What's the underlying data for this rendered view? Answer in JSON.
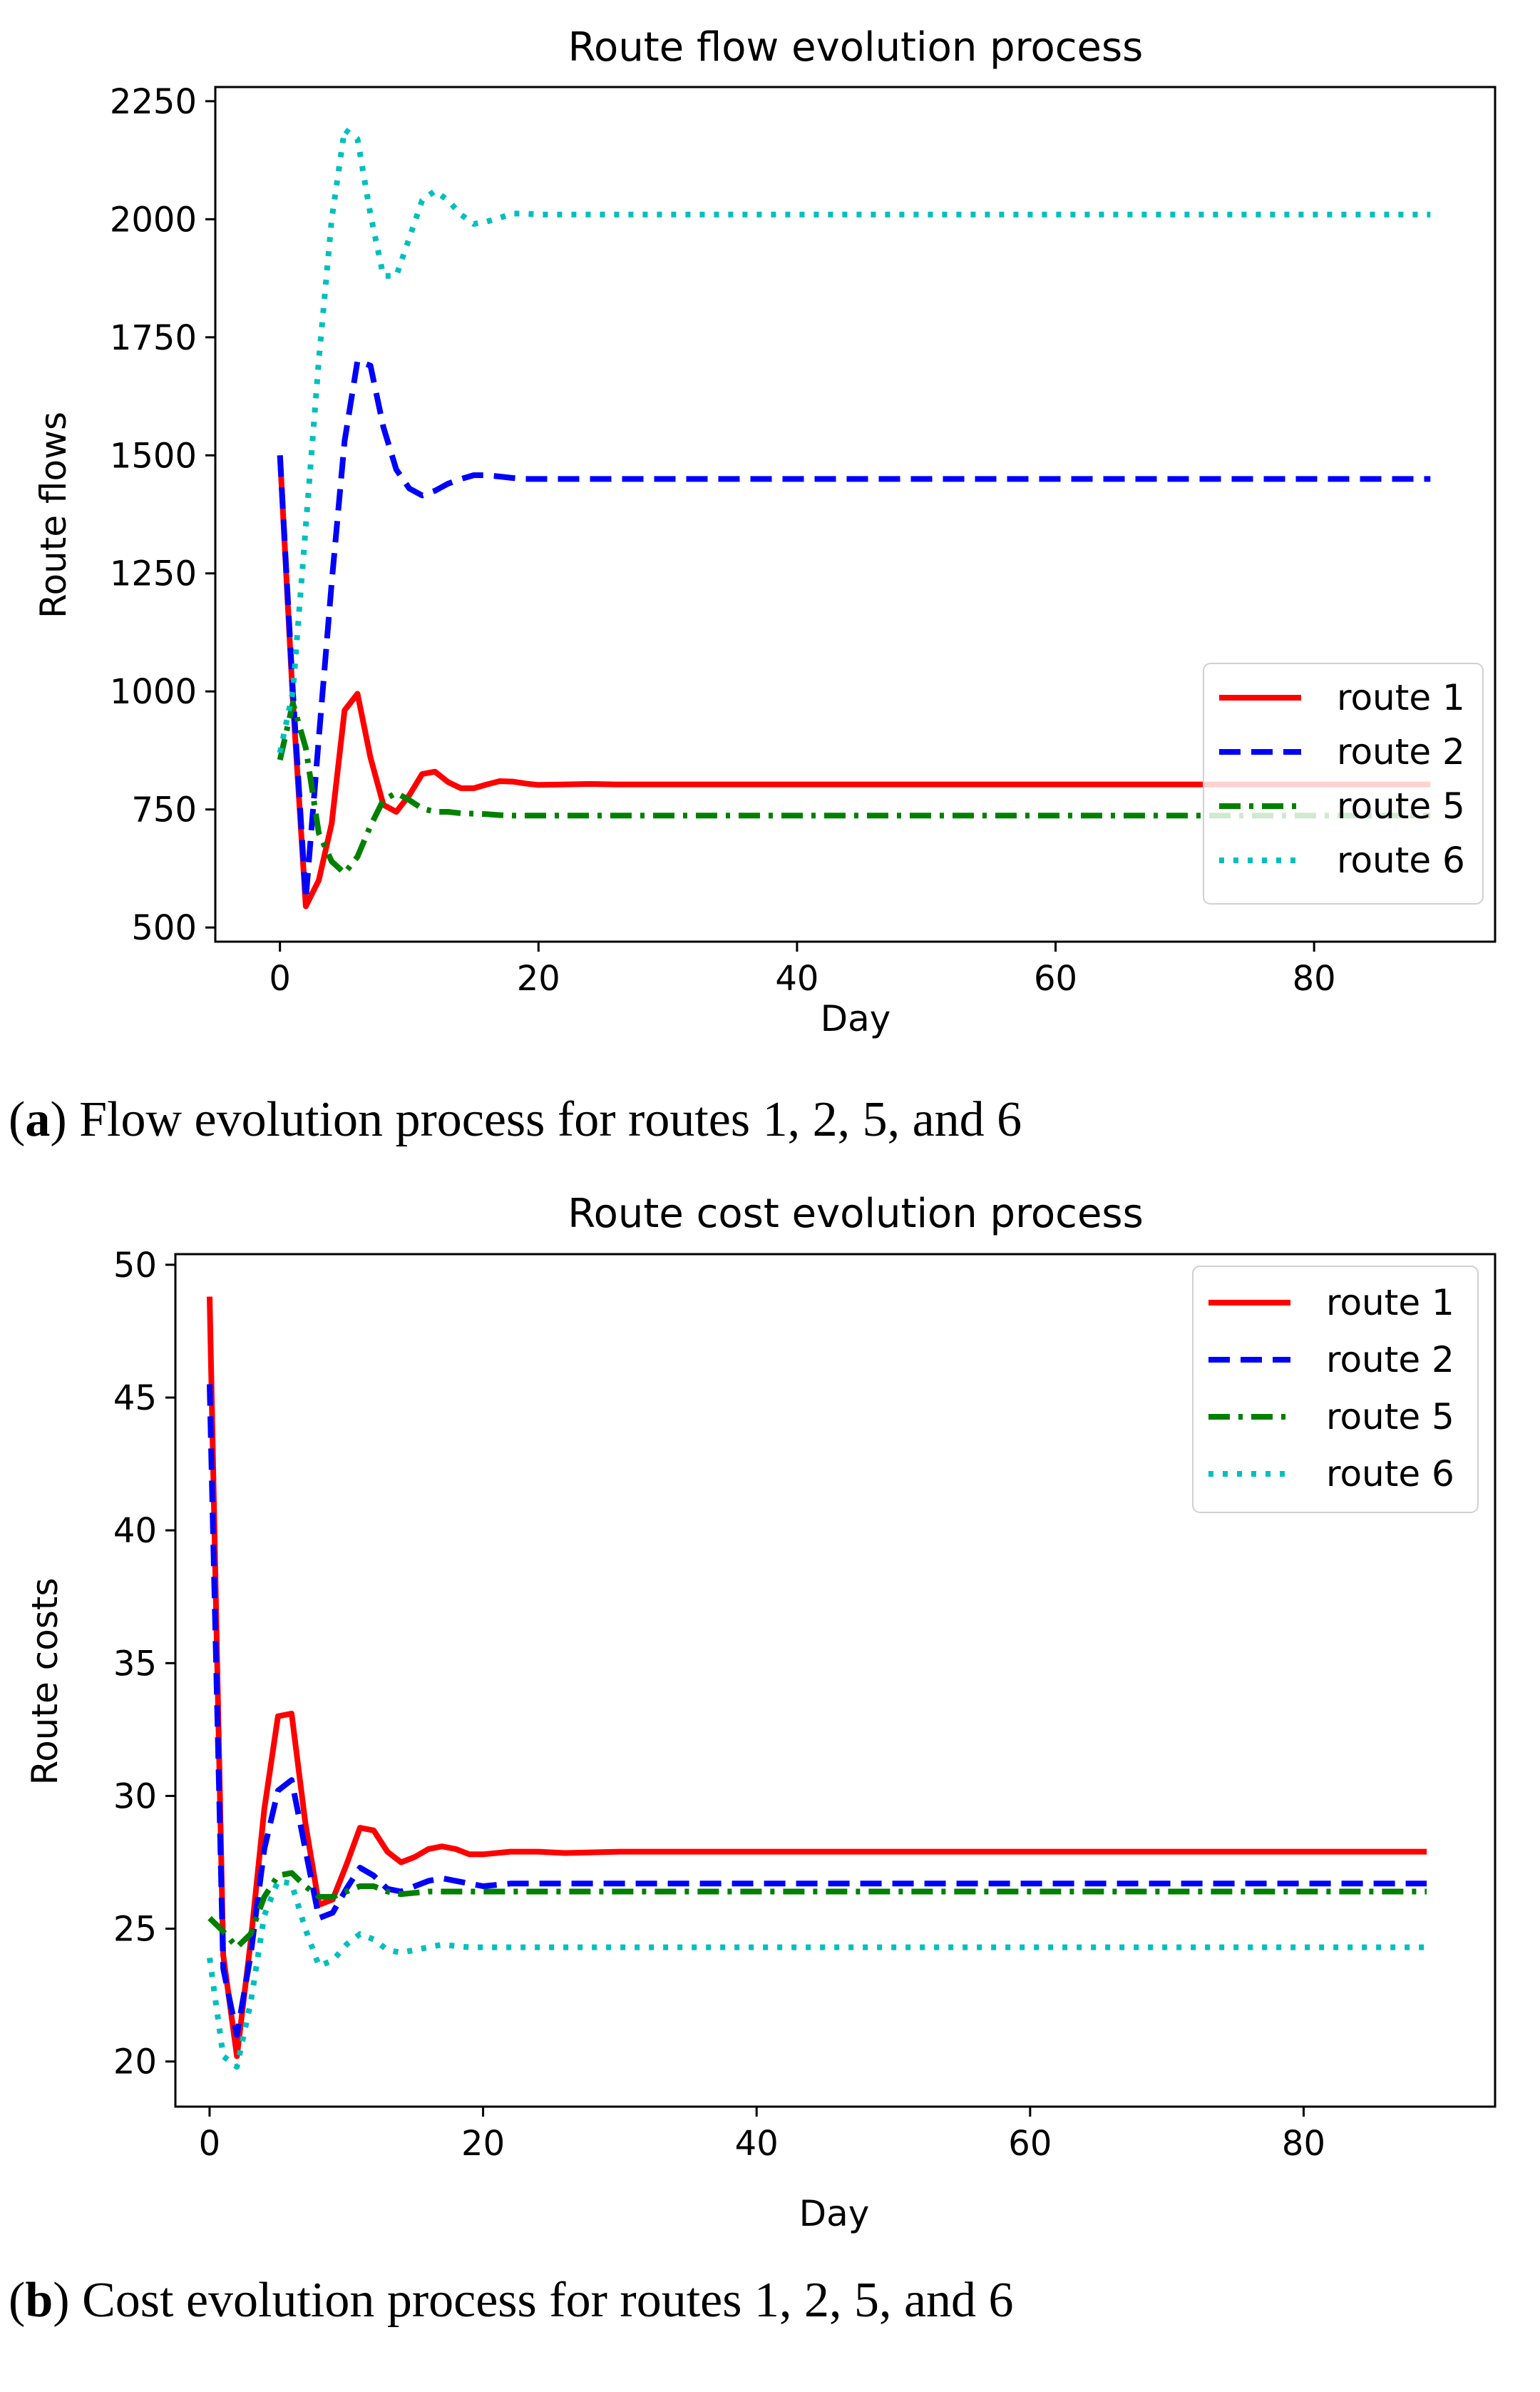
{
  "chart_data": [
    {
      "type": "line",
      "title": "Route flow evolution process",
      "xlabel": "Day",
      "ylabel": "Route flows",
      "xlim": [
        -5,
        94
      ],
      "ylim": [
        470,
        2280
      ],
      "xticks": [
        0,
        20,
        40,
        60,
        80
      ],
      "yticks": [
        500,
        750,
        1000,
        1250,
        1500,
        1750,
        2000,
        2250
      ],
      "grid": false,
      "legend_position": "center-right",
      "caption_label": "a",
      "caption_text": "Flow evolution process for routes 1, 2, 5, and 6",
      "series": [
        {
          "name": "route 1",
          "color": "#ff0000",
          "style": "solid",
          "x": [
            0,
            1,
            2,
            3,
            4,
            5,
            6,
            7,
            8,
            9,
            10,
            11,
            12,
            13,
            14,
            15,
            16,
            17,
            18,
            19,
            20,
            22,
            24,
            26,
            30,
            40,
            50,
            60,
            70,
            80,
            89
          ],
          "y": [
            1500,
            980,
            545,
            600,
            720,
            960,
            995,
            860,
            760,
            745,
            780,
            825,
            830,
            808,
            795,
            795,
            803,
            810,
            809,
            805,
            802,
            803,
            804,
            803,
            803,
            803,
            803,
            803,
            803,
            803,
            803
          ]
        },
        {
          "name": "route 2",
          "color": "#0000ff",
          "style": "dashed",
          "x": [
            0,
            1,
            2,
            3,
            4,
            5,
            6,
            7,
            8,
            9,
            10,
            11,
            12,
            13,
            14,
            15,
            16,
            17,
            18,
            19,
            20,
            22,
            24,
            26,
            30,
            40,
            50,
            60,
            70,
            80,
            89
          ],
          "y": [
            1500,
            1000,
            560,
            900,
            1230,
            1530,
            1700,
            1690,
            1560,
            1470,
            1430,
            1415,
            1425,
            1440,
            1450,
            1458,
            1458,
            1455,
            1452,
            1450,
            1450,
            1450,
            1450,
            1450,
            1450,
            1450,
            1450,
            1450,
            1450,
            1450,
            1450
          ]
        },
        {
          "name": "route 5",
          "color": "#008000",
          "style": "dashdot",
          "x": [
            0,
            1,
            2,
            3,
            4,
            5,
            6,
            7,
            8,
            9,
            10,
            11,
            12,
            13,
            14,
            15,
            16,
            17,
            18,
            19,
            20,
            22,
            24,
            26,
            30,
            40,
            50,
            60,
            70,
            80,
            89
          ],
          "y": [
            855,
            975,
            880,
            700,
            640,
            615,
            650,
            715,
            770,
            785,
            770,
            752,
            745,
            745,
            742,
            741,
            740,
            738,
            737,
            737,
            737,
            737,
            737,
            737,
            737,
            737,
            737,
            737,
            737,
            737,
            737
          ]
        },
        {
          "name": "route 6",
          "color": "#00bfbf",
          "style": "dotted",
          "x": [
            0,
            1,
            2,
            3,
            4,
            5,
            6,
            7,
            8,
            9,
            10,
            11,
            12,
            13,
            14,
            15,
            16,
            17,
            18,
            19,
            20,
            22,
            24,
            26,
            30,
            40,
            50,
            60,
            70,
            80,
            89
          ],
          "y": [
            870,
            1000,
            1350,
            1700,
            2000,
            2190,
            2170,
            2010,
            1880,
            1880,
            1960,
            2040,
            2060,
            2040,
            2010,
            1990,
            1995,
            2003,
            2012,
            2012,
            2010,
            2010,
            2010,
            2010,
            2010,
            2010,
            2010,
            2010,
            2010,
            2010,
            2010
          ]
        }
      ]
    },
    {
      "type": "line",
      "title": "Route cost evolution process",
      "xlabel": "Day",
      "ylabel": "Route costs",
      "xlim": [
        -2.5,
        94
      ],
      "ylim": [
        18.3,
        50.4
      ],
      "xticks": [
        0,
        20,
        40,
        60,
        80
      ],
      "yticks": [
        20,
        25,
        30,
        35,
        40,
        45,
        50
      ],
      "grid": false,
      "legend_position": "upper-right",
      "caption_label": "b",
      "caption_text": "Cost evolution process for routes 1, 2, 5, and 6",
      "series": [
        {
          "name": "route 1",
          "color": "#ff0000",
          "style": "solid",
          "x": [
            0,
            1,
            2,
            3,
            4,
            5,
            6,
            7,
            8,
            9,
            10,
            11,
            12,
            13,
            14,
            15,
            16,
            17,
            18,
            19,
            20,
            22,
            24,
            26,
            30,
            40,
            50,
            60,
            70,
            80,
            89
          ],
          "y": [
            48.8,
            24.0,
            20.2,
            24.5,
            29.5,
            33.0,
            33.1,
            29.0,
            25.9,
            26.1,
            27.4,
            28.8,
            28.7,
            27.9,
            27.5,
            27.7,
            28.0,
            28.1,
            28.0,
            27.8,
            27.8,
            27.9,
            27.9,
            27.85,
            27.9,
            27.9,
            27.9,
            27.9,
            27.9,
            27.9,
            27.9
          ]
        },
        {
          "name": "route 2",
          "color": "#0000ff",
          "style": "dashed",
          "x": [
            0,
            1,
            2,
            3,
            4,
            5,
            6,
            7,
            8,
            9,
            10,
            11,
            12,
            13,
            14,
            15,
            16,
            17,
            18,
            19,
            20,
            22,
            24,
            26,
            30,
            40,
            50,
            60,
            70,
            80,
            89
          ],
          "y": [
            45.5,
            23.5,
            21.0,
            24.0,
            28.0,
            30.2,
            30.6,
            28.0,
            25.4,
            25.6,
            26.5,
            27.3,
            27.0,
            26.5,
            26.4,
            26.6,
            26.8,
            26.9,
            26.8,
            26.7,
            26.6,
            26.7,
            26.7,
            26.7,
            26.7,
            26.7,
            26.7,
            26.7,
            26.7,
            26.7,
            26.7
          ]
        },
        {
          "name": "route 5",
          "color": "#008000",
          "style": "dashdot",
          "x": [
            0,
            1,
            2,
            3,
            4,
            5,
            6,
            7,
            8,
            9,
            10,
            11,
            12,
            13,
            14,
            15,
            16,
            17,
            18,
            19,
            20,
            22,
            24,
            26,
            30,
            40,
            50,
            60,
            70,
            80,
            89
          ],
          "y": [
            25.4,
            24.9,
            24.3,
            24.8,
            26.2,
            27.0,
            27.1,
            26.6,
            26.2,
            26.2,
            26.4,
            26.6,
            26.6,
            26.4,
            26.3,
            26.35,
            26.4,
            26.4,
            26.4,
            26.4,
            26.4,
            26.4,
            26.4,
            26.4,
            26.4,
            26.4,
            26.4,
            26.4,
            26.4,
            26.4,
            26.4
          ]
        },
        {
          "name": "route 6",
          "color": "#00bfbf",
          "style": "dotted",
          "x": [
            0,
            1,
            2,
            3,
            4,
            5,
            6,
            7,
            8,
            9,
            10,
            11,
            12,
            13,
            14,
            15,
            16,
            17,
            18,
            19,
            20,
            22,
            24,
            26,
            30,
            40,
            50,
            60,
            70,
            80,
            89
          ],
          "y": [
            23.9,
            20.2,
            19.8,
            22.2,
            25.5,
            26.8,
            26.7,
            25.0,
            23.6,
            23.8,
            24.4,
            24.8,
            24.6,
            24.2,
            24.1,
            24.2,
            24.3,
            24.4,
            24.35,
            24.3,
            24.3,
            24.3,
            24.3,
            24.3,
            24.3,
            24.3,
            24.3,
            24.3,
            24.3,
            24.3,
            24.3
          ]
        }
      ]
    }
  ]
}
